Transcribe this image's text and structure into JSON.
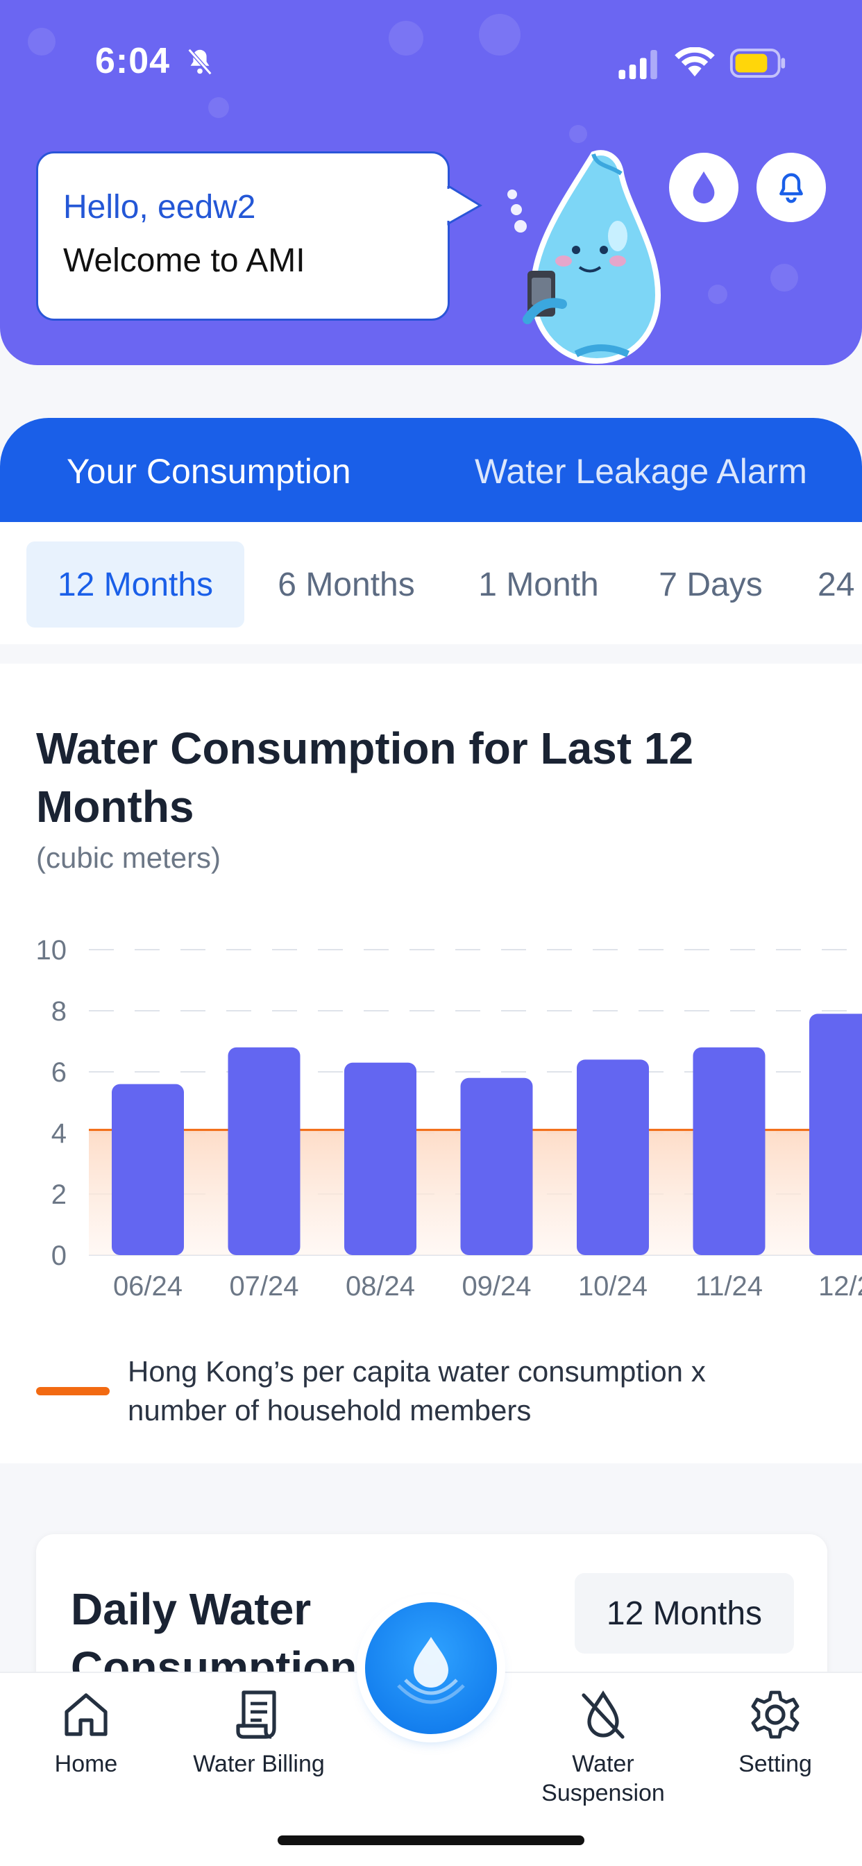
{
  "status_bar": {
    "time": "6:04"
  },
  "header": {
    "greeting": "Hello, eedw2",
    "welcome": "Welcome to AMI"
  },
  "main_tabs": [
    {
      "label": "Your Consumption",
      "active": true
    },
    {
      "label": "Water Leakage Alarm",
      "active": false
    }
  ],
  "periods": [
    {
      "label": "12 Months",
      "active": true
    },
    {
      "label": "6 Months",
      "active": false
    },
    {
      "label": "1 Month",
      "active": false
    },
    {
      "label": "7 Days",
      "active": false
    },
    {
      "label": "24",
      "active": false
    }
  ],
  "chart_section": {
    "title": "Water Consumption for Last 12 Months",
    "subtitle": "(cubic meters)",
    "legend": "Hong Kong’s per capita water consumption x number of household members"
  },
  "chart_data": {
    "type": "bar",
    "categories": [
      "06/24",
      "07/24",
      "08/24",
      "09/24",
      "10/24",
      "11/24",
      "12/2"
    ],
    "values": [
      5.6,
      6.8,
      6.3,
      5.8,
      6.4,
      6.8,
      7.9
    ],
    "reference_line": 4.1,
    "ylim": [
      0,
      10
    ],
    "yticks": [
      0,
      2,
      4,
      6,
      8,
      10
    ],
    "grid": true,
    "colors": {
      "bar": "#6366f1",
      "reference": "#f26a12"
    }
  },
  "daily_section": {
    "title": "Daily Water Consumption",
    "period_select": "12 Months"
  },
  "bottom_nav": [
    {
      "label": "Home",
      "icon": "home-icon"
    },
    {
      "label": "Water Billing",
      "icon": "receipt-icon"
    },
    {
      "label": "",
      "icon": "water-drop-icon"
    },
    {
      "label": "Water Suspension",
      "icon": "drop-off-icon"
    },
    {
      "label": "Setting",
      "icon": "gear-icon"
    }
  ],
  "colors": {
    "header": "#6b66f2",
    "tab_bar": "#1a5fe8",
    "accent": "#1a5fe8"
  }
}
